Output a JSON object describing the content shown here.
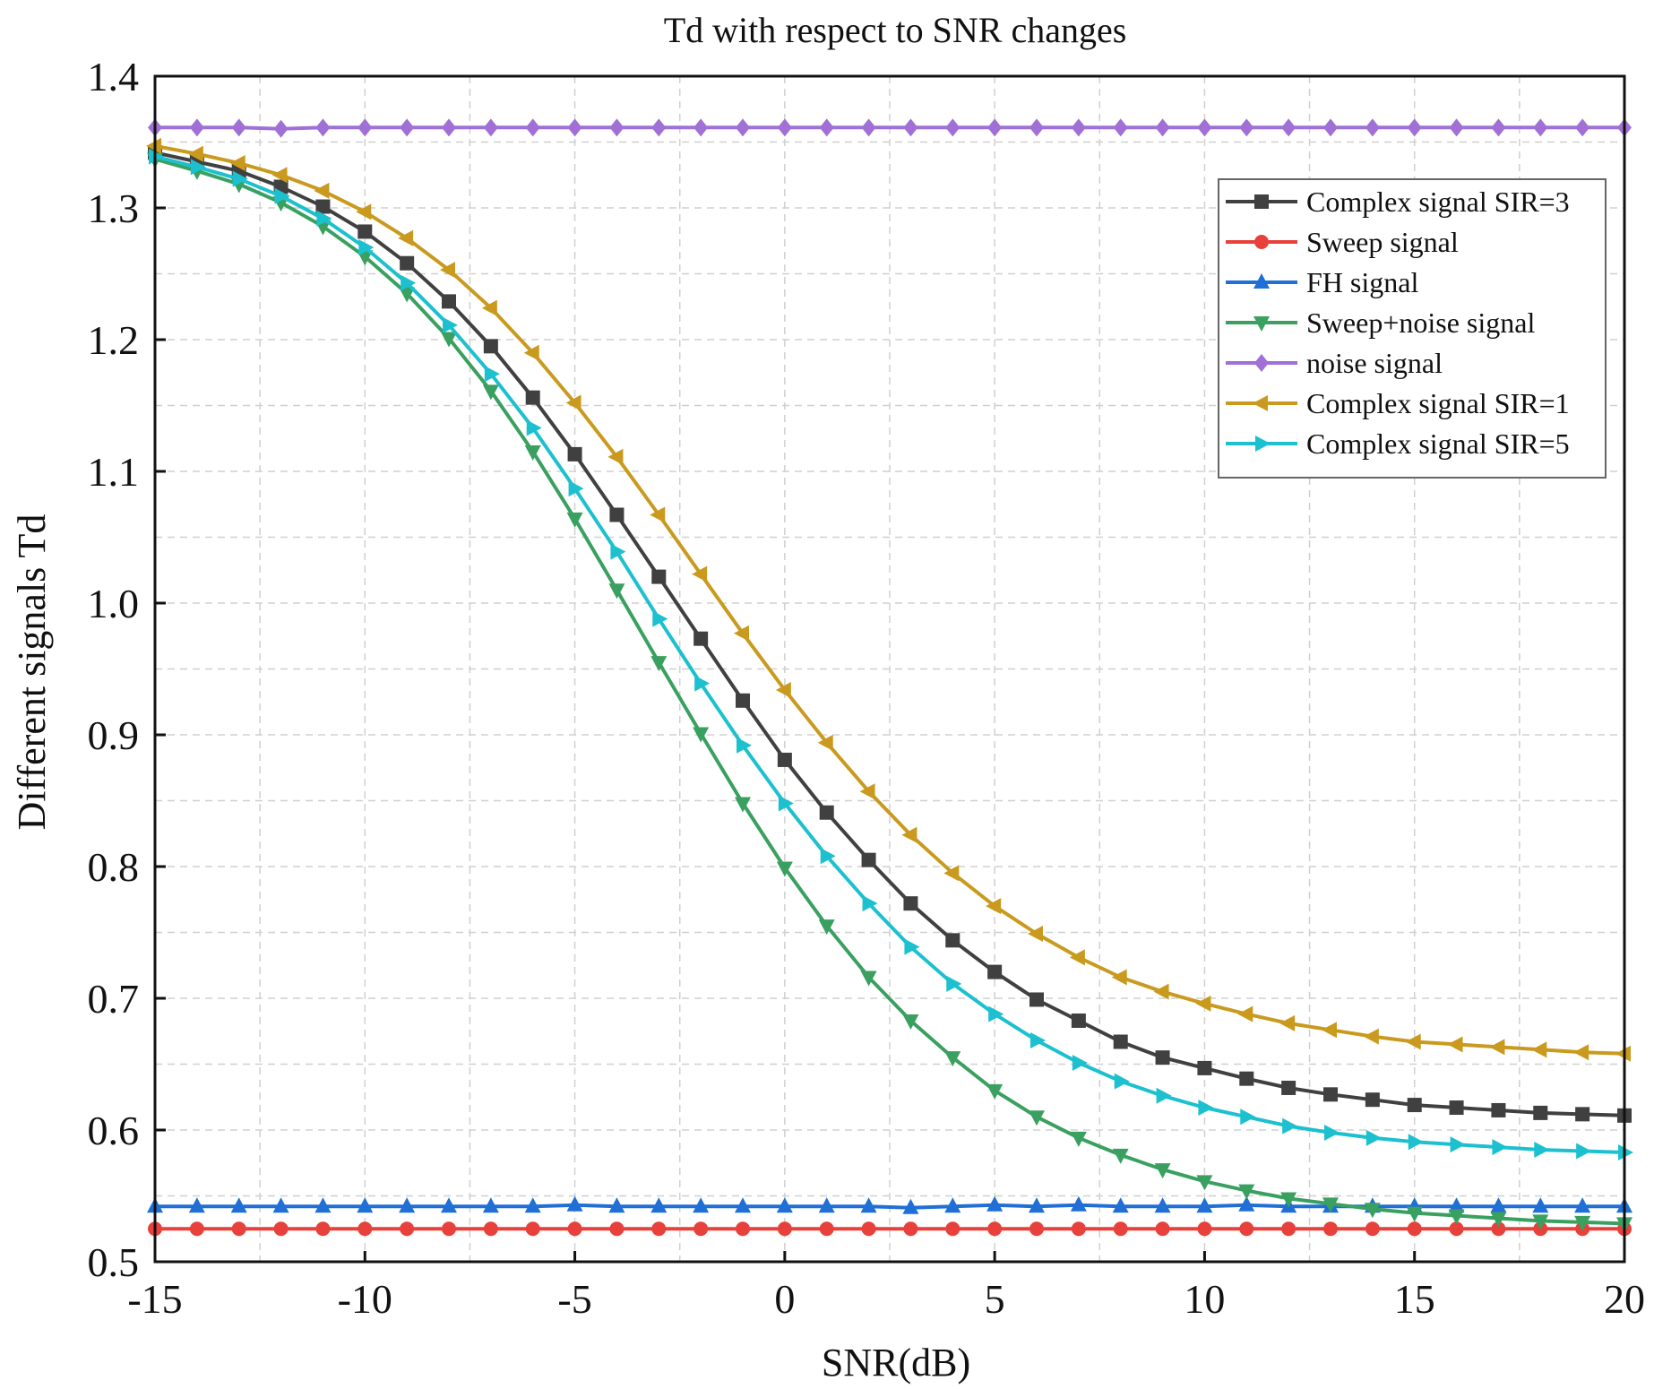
{
  "chart_data": {
    "type": "line",
    "title": "Td with respect to SNR changes",
    "xlabel": "SNR(dB)",
    "ylabel": "Different signals Td",
    "xlim": [
      -15,
      20
    ],
    "ylim": [
      0.5,
      1.4
    ],
    "xticks": [
      -15,
      -10,
      -5,
      0,
      5,
      10,
      15,
      20
    ],
    "yticks": [
      0.5,
      0.6,
      0.7,
      0.8,
      0.9,
      1.0,
      1.1,
      1.2,
      1.3,
      1.4
    ],
    "ytick_labels": [
      "0.5",
      "0.6",
      "0.7",
      "0.8",
      "0.9",
      "1.0",
      "1.1",
      "1.2",
      "1.3",
      "1.4"
    ],
    "grid": true,
    "legend_position": "top-right",
    "x": [
      -15,
      -14,
      -13,
      -12,
      -11,
      -10,
      -9,
      -8,
      -7,
      -6,
      -5,
      -4,
      -3,
      -2,
      -1,
      0,
      1,
      2,
      3,
      4,
      5,
      6,
      7,
      8,
      9,
      10,
      11,
      12,
      13,
      14,
      15,
      16,
      17,
      18,
      19,
      20
    ],
    "series": [
      {
        "name": "Complex signal SIR=3",
        "color": "#404040",
        "marker": "square",
        "values": [
          1.342,
          1.335,
          1.328,
          1.316,
          1.301,
          1.282,
          1.258,
          1.229,
          1.195,
          1.156,
          1.113,
          1.067,
          1.02,
          0.973,
          0.926,
          0.881,
          0.841,
          0.805,
          0.772,
          0.744,
          0.72,
          0.699,
          0.683,
          0.667,
          0.655,
          0.647,
          0.639,
          0.632,
          0.627,
          0.623,
          0.619,
          0.617,
          0.615,
          0.613,
          0.612,
          0.611
        ]
      },
      {
        "name": "Sweep signal",
        "color": "#e8403a",
        "marker": "circle",
        "values": [
          0.525,
          0.525,
          0.525,
          0.525,
          0.525,
          0.525,
          0.525,
          0.525,
          0.525,
          0.525,
          0.525,
          0.525,
          0.525,
          0.525,
          0.525,
          0.525,
          0.525,
          0.525,
          0.525,
          0.525,
          0.525,
          0.525,
          0.525,
          0.525,
          0.525,
          0.525,
          0.525,
          0.525,
          0.525,
          0.525,
          0.525,
          0.525,
          0.525,
          0.525,
          0.525,
          0.525
        ]
      },
      {
        "name": "FH signal",
        "color": "#1f6fd6",
        "marker": "triangle-up",
        "values": [
          0.542,
          0.542,
          0.542,
          0.542,
          0.542,
          0.542,
          0.542,
          0.542,
          0.542,
          0.542,
          0.543,
          0.542,
          0.542,
          0.542,
          0.542,
          0.542,
          0.542,
          0.542,
          0.541,
          0.542,
          0.543,
          0.542,
          0.543,
          0.542,
          0.542,
          0.542,
          0.543,
          0.542,
          0.542,
          0.542,
          0.542,
          0.542,
          0.542,
          0.542,
          0.542,
          0.542
        ]
      },
      {
        "name": "Sweep+noise signal",
        "color": "#3aa060",
        "marker": "triangle-down",
        "values": [
          1.337,
          1.328,
          1.318,
          1.304,
          1.286,
          1.263,
          1.235,
          1.201,
          1.161,
          1.115,
          1.064,
          1.01,
          0.955,
          0.901,
          0.848,
          0.799,
          0.755,
          0.716,
          0.683,
          0.655,
          0.63,
          0.61,
          0.594,
          0.581,
          0.57,
          0.561,
          0.554,
          0.548,
          0.544,
          0.54,
          0.537,
          0.535,
          0.533,
          0.531,
          0.53,
          0.529
        ]
      },
      {
        "name": "noise signal",
        "color": "#a070d6",
        "marker": "diamond",
        "values": [
          1.361,
          1.361,
          1.361,
          1.36,
          1.361,
          1.361,
          1.361,
          1.361,
          1.361,
          1.361,
          1.361,
          1.361,
          1.361,
          1.361,
          1.361,
          1.361,
          1.361,
          1.361,
          1.361,
          1.361,
          1.361,
          1.361,
          1.361,
          1.361,
          1.361,
          1.361,
          1.361,
          1.361,
          1.361,
          1.361,
          1.361,
          1.361,
          1.361,
          1.361,
          1.361,
          1.361
        ]
      },
      {
        "name": "Complex signal SIR=1",
        "color": "#c99a1e",
        "marker": "triangle-left",
        "values": [
          1.347,
          1.341,
          1.334,
          1.325,
          1.313,
          1.297,
          1.277,
          1.253,
          1.224,
          1.19,
          1.152,
          1.111,
          1.067,
          1.022,
          0.977,
          0.934,
          0.894,
          0.857,
          0.824,
          0.795,
          0.77,
          0.749,
          0.731,
          0.716,
          0.705,
          0.696,
          0.688,
          0.681,
          0.676,
          0.671,
          0.667,
          0.665,
          0.663,
          0.661,
          0.659,
          0.658
        ]
      },
      {
        "name": "Complex signal SIR=5",
        "color": "#1cc0cf",
        "marker": "triangle-right",
        "values": [
          1.339,
          1.331,
          1.322,
          1.309,
          1.292,
          1.27,
          1.243,
          1.211,
          1.174,
          1.133,
          1.087,
          1.039,
          0.988,
          0.939,
          0.892,
          0.848,
          0.808,
          0.772,
          0.739,
          0.711,
          0.688,
          0.668,
          0.651,
          0.637,
          0.626,
          0.617,
          0.61,
          0.603,
          0.598,
          0.594,
          0.591,
          0.589,
          0.587,
          0.585,
          0.584,
          0.583
        ]
      }
    ]
  }
}
